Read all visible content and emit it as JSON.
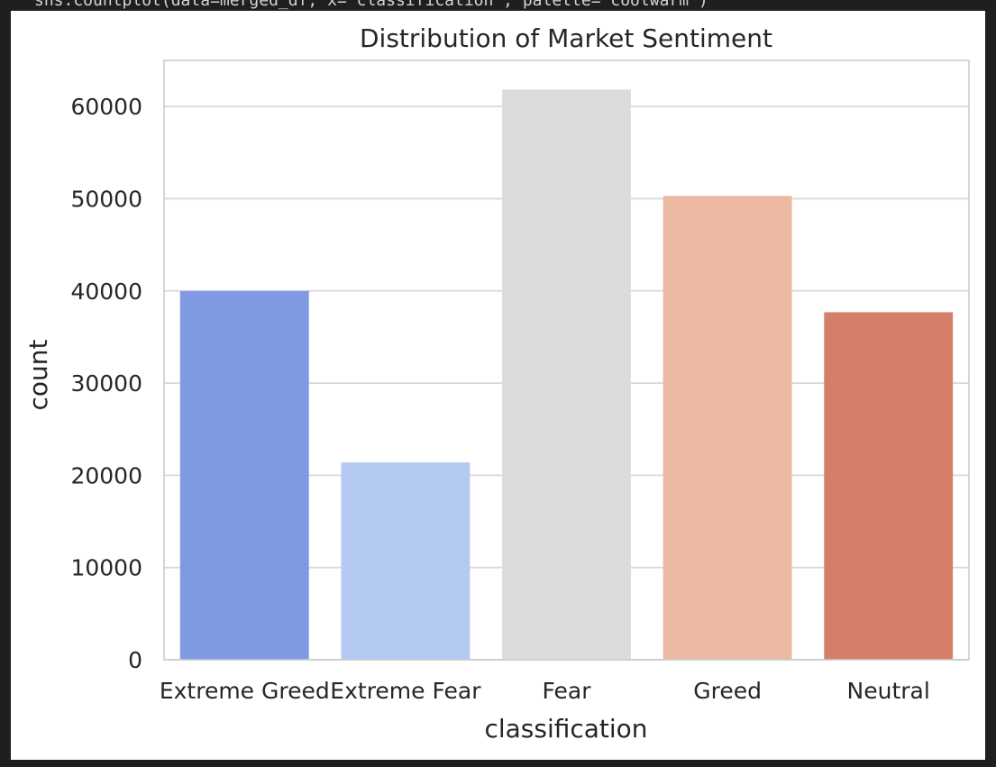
{
  "code": {
    "top_line": "sns.countplot(data=merged_df, x='classification', palette='coolwarm')",
    "bottom_line": ""
  },
  "chart_data": {
    "type": "bar",
    "title": "Distribution of Market Sentiment",
    "xlabel": "classification",
    "ylabel": "count",
    "categories": [
      "Extreme Greed",
      "Extreme Fear",
      "Fear",
      "Greed",
      "Neutral"
    ],
    "values": [
      39992,
      21400,
      61837,
      50303,
      37686
    ],
    "colors": [
      "#7f9ae2",
      "#b5caf3",
      "#dcdcdc",
      "#ecb9a2",
      "#d57f6b"
    ],
    "ylim": [
      0,
      65000
    ],
    "yticks": [
      0,
      10000,
      20000,
      30000,
      40000,
      50000,
      60000
    ],
    "ytick_labels": [
      "0",
      "10000",
      "20000",
      "30000",
      "40000",
      "50000",
      "60000"
    ],
    "grid": true,
    "style": {
      "grid_color": "#d9d9d9",
      "spine_color": "#cccccc",
      "text_color": "#262626"
    }
  }
}
